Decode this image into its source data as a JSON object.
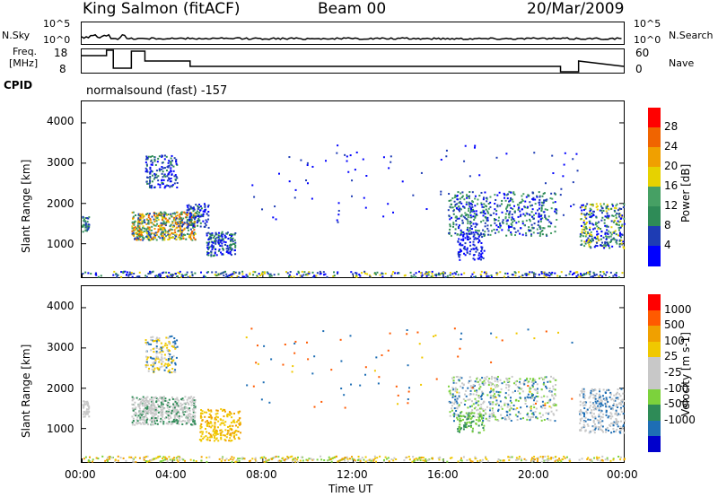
{
  "header": {
    "station": "King Salmon (fitACF)",
    "beam": "Beam 00",
    "date": "20/Mar/2009"
  },
  "top_strip": {
    "left_label": "N.Sky",
    "right_label": "N.Search",
    "left_ticks": [
      "10^5",
      "10^0"
    ],
    "right_ticks": [
      "10^5",
      "10^0"
    ]
  },
  "freq_strip": {
    "left_label_1": "Freq.",
    "left_label_2": "[MHz]",
    "right_label": "Nave",
    "left_ticks": [
      "18",
      "8"
    ],
    "right_ticks": [
      "60",
      "0"
    ]
  },
  "cpid": {
    "label": "CPID",
    "value": "normalsound (fast) -157"
  },
  "xaxis": {
    "title": "Time UT",
    "ticks": [
      "00:00",
      "04:00",
      "08:00",
      "12:00",
      "16:00",
      "20:00",
      "00:00"
    ]
  },
  "colors": {
    "power": [
      "#0000ff",
      "#1e3cb4",
      "#2e8b57",
      "#46a064",
      "#e6d200",
      "#f0a000",
      "#f06400",
      "#ff0000"
    ],
    "velocity": [
      "#0000cc",
      "#1e6eb4",
      "#2e8b57",
      "#7cd23c",
      "#c8c8c8",
      "#c8c8c8",
      "#f0c800",
      "#f0a000",
      "#ff5a00",
      "#ff0000"
    ]
  },
  "chart_data": [
    {
      "type": "heatmap",
      "title": "",
      "ylabel": "Slant Range [km]",
      "xlabel": "",
      "ylim": [
        180,
        4500
      ],
      "yticks": [
        "4000",
        "3000",
        "2000",
        "1000"
      ],
      "xlim_hours": [
        0,
        24
      ],
      "colorbar": {
        "label": "Power [dB]",
        "ticks": [
          "28",
          "24",
          "20",
          "16",
          "12",
          "8",
          "4"
        ]
      }
    },
    {
      "type": "heatmap",
      "title": "",
      "ylabel": "Slant Range [km]",
      "xlabel": "Time UT",
      "ylim": [
        180,
        4500
      ],
      "yticks": [
        "4000",
        "3000",
        "2000",
        "1000"
      ],
      "xlim_hours": [
        0,
        24
      ],
      "colorbar": {
        "label": "Velocity [m s-1]",
        "ticks": [
          "1000",
          "500",
          "100",
          "25",
          "-25",
          "-100",
          "-500",
          "-1000"
        ]
      }
    }
  ]
}
